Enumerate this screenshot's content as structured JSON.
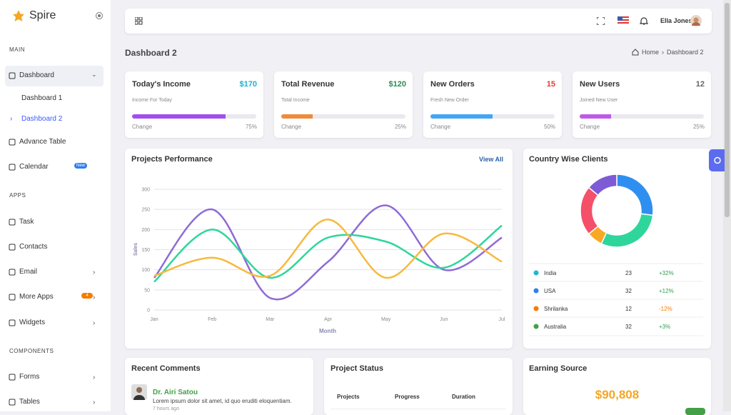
{
  "sidebar": {
    "brand": "Spire",
    "sections": [
      {
        "heading": "MAIN",
        "items": [
          {
            "label": "Dashboard",
            "active": true,
            "expanded": true,
            "children": [
              {
                "label": "Dashboard 1",
                "active": false
              },
              {
                "label": "Dashboard 2",
                "active": true
              }
            ]
          },
          {
            "label": "Advance Table"
          },
          {
            "label": "Calendar",
            "badge": "New",
            "badge_color": "#2f80ed"
          }
        ]
      },
      {
        "heading": "APPS",
        "items": [
          {
            "label": "Task"
          },
          {
            "label": "Contacts"
          },
          {
            "label": "Email",
            "submenu": true
          },
          {
            "label": "More Apps",
            "badge": "4",
            "badge_color": "#f57c00",
            "submenu": true
          },
          {
            "label": "Widgets",
            "submenu": true
          }
        ]
      },
      {
        "heading": "COMPONENTS",
        "items": [
          {
            "label": "Forms",
            "submenu": true
          },
          {
            "label": "Tables",
            "submenu": true
          }
        ]
      }
    ]
  },
  "header": {
    "user": "Ella Jones"
  },
  "page": {
    "title": "Dashboard 2",
    "breadcrumb": [
      "Home",
      "Dashboard 2"
    ]
  },
  "stats": [
    {
      "title": "Today's Income",
      "value": "$170",
      "value_color": "#17b3d1",
      "subtitle": "Income For Today",
      "progress": 75,
      "progress_label": "75%",
      "color": "#a14ff0",
      "change": "Change"
    },
    {
      "title": "Total Revenue",
      "value": "$120",
      "value_color": "#2e8b57",
      "subtitle": "Total Income",
      "progress": 25,
      "progress_label": "25%",
      "color": "#f08a3c",
      "change": "Change"
    },
    {
      "title": "New Orders",
      "value": "15",
      "value_color": "#e53935",
      "subtitle": "Fresh New Order",
      "progress": 50,
      "progress_label": "50%",
      "color": "#42a5f5",
      "change": "Change"
    },
    {
      "title": "New Users",
      "value": "12",
      "value_color": "#666666",
      "subtitle": "Joined New User",
      "progress": 25,
      "progress_label": "25%",
      "color": "#c058e8",
      "change": "Change"
    }
  ],
  "performance": {
    "title": "Projects Performance",
    "link": "View All",
    "chart_data": {
      "type": "line",
      "y_label": "Sales",
      "x_label": "Month",
      "categories": [
        "Jan",
        "Feb",
        "Mar",
        "Apr",
        "May",
        "Jun",
        "Jul"
      ],
      "series": [
        {
          "color": "#8e6bd6",
          "values": [
            80,
            250,
            30,
            120,
            260,
            100,
            180
          ]
        },
        {
          "color": "#2fd69b",
          "values": [
            70,
            200,
            80,
            180,
            170,
            105,
            210
          ]
        },
        {
          "color": "#f7b93e",
          "values": [
            85,
            130,
            85,
            225,
            80,
            190,
            120
          ]
        }
      ],
      "ylim": [
        0,
        300
      ],
      "yticks": [
        0,
        50,
        100,
        150,
        200,
        250,
        300
      ],
      "grid": true
    }
  },
  "clients": {
    "title": "Country Wise Clients",
    "chart_data": {
      "type": "donut",
      "values": [
        27,
        30,
        7,
        22,
        14
      ],
      "colors": [
        "#2f8ff0",
        "#2fd69b",
        "#f9a825",
        "#f4506a",
        "#7e5bd6"
      ]
    },
    "rows": [
      {
        "country": "India",
        "clients": "23",
        "change": "+32%",
        "color": "#1eb8d0",
        "change_color": "#2e9e4f"
      },
      {
        "country": "USA",
        "clients": "32",
        "change": "+12%",
        "color": "#2f80ed",
        "change_color": "#2e9e4f"
      },
      {
        "country": "Shrilanka",
        "clients": "12",
        "change": "-12%",
        "color": "#f57c00",
        "change_color": "#f57c00"
      },
      {
        "country": "Australia",
        "clients": "32",
        "change": "+3%",
        "color": "#43a047",
        "change_color": "#2e9e4f"
      }
    ]
  },
  "comments": {
    "title": "Recent Comments",
    "items": [
      {
        "name": "Dr. Airi Satou",
        "text": "Lorem ipsum dolor sit amet, id quo eruditi eloquentiam.",
        "time": "7 hours ago"
      }
    ]
  },
  "project_status": {
    "title": "Project Status",
    "columns": [
      "Projects",
      "Progress",
      "Duration"
    ]
  },
  "earning": {
    "title": "Earning Source",
    "value": "$90,808"
  }
}
